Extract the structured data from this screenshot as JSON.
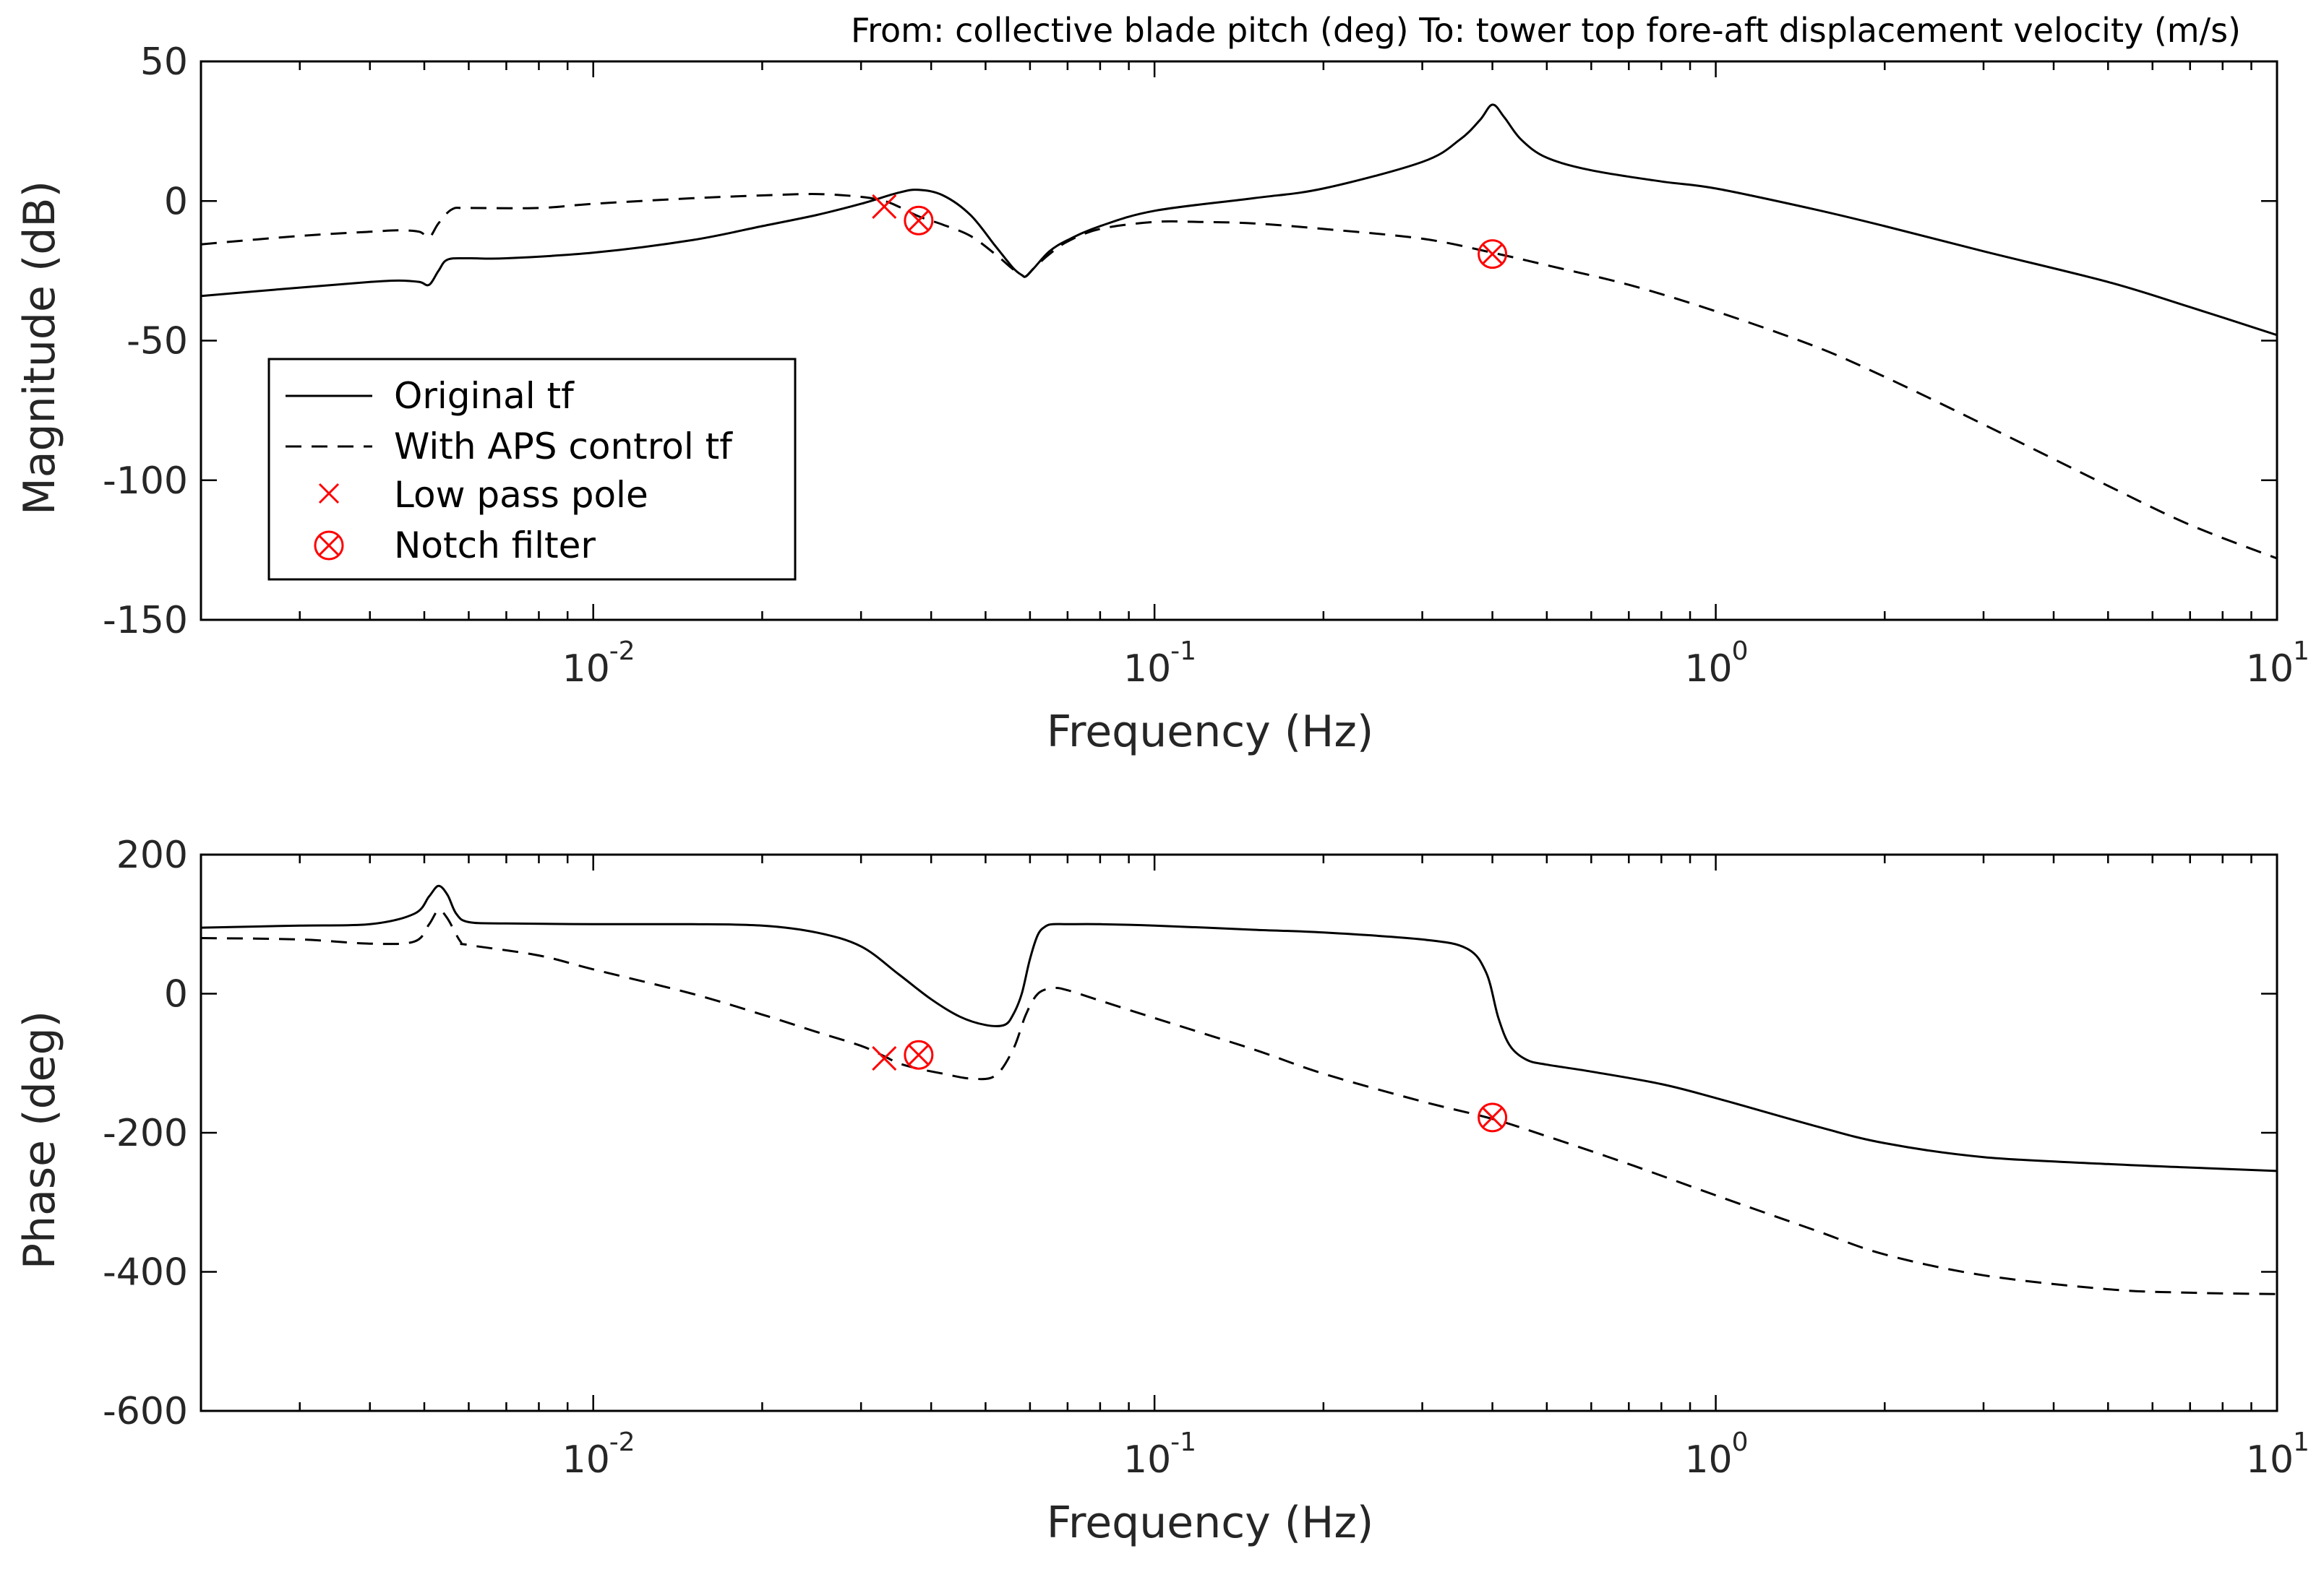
{
  "title": "From: collective blade pitch (deg)  To: tower top fore-aft displacement velocity (m/s)",
  "colors": {
    "curve": "#000000",
    "marker": "#ff0000",
    "text": "#262626"
  },
  "legend": {
    "items": [
      {
        "label": "Original tf",
        "style": "solid"
      },
      {
        "label": "With APS control tf",
        "style": "dashed"
      },
      {
        "label": "Low pass pole",
        "style": "x-marker"
      },
      {
        "label": "Notch filter",
        "style": "circle-x-marker"
      }
    ]
  },
  "chart_data": [
    {
      "type": "line",
      "id": "magnitude",
      "xscale": "log",
      "xlim": [
        0.002,
        10
      ],
      "ylim": [
        -150,
        50
      ],
      "xlabel": "Frequency (Hz)",
      "ylabel": "Magnitude (dB)",
      "yticks": [
        50,
        0,
        -50,
        -100,
        -150
      ],
      "ytick_labels": [
        "50",
        "0",
        "-50",
        "-100",
        "-150"
      ],
      "xticks": [
        {
          "value": 0.01,
          "base": "10",
          "exp": "-2"
        },
        {
          "value": 0.1,
          "base": "10",
          "exp": "-1"
        },
        {
          "value": 1,
          "base": "10",
          "exp": "0"
        },
        {
          "value": 10,
          "base": "10",
          "exp": "1"
        }
      ],
      "series": [
        {
          "name": "Original tf",
          "style": "solid",
          "x": [
            0.002,
            0.003,
            0.004,
            0.0045,
            0.0049,
            0.0051,
            0.0053,
            0.0055,
            0.006,
            0.007,
            0.01,
            0.015,
            0.02,
            0.025,
            0.03,
            0.035,
            0.038,
            0.042,
            0.047,
            0.052,
            0.056,
            0.058,
            0.059,
            0.061,
            0.065,
            0.07,
            0.08,
            0.1,
            0.15,
            0.2,
            0.3,
            0.35,
            0.38,
            0.4,
            0.42,
            0.45,
            0.5,
            0.6,
            0.8,
            1.0,
            1.5,
            2.0,
            3.0,
            5.0,
            7.0,
            10.0
          ],
          "y": [
            -34,
            -31,
            -29,
            -28.5,
            -29,
            -30,
            -25,
            -21,
            -20.5,
            -20.5,
            -18.5,
            -14,
            -9,
            -5,
            -1,
            3,
            4,
            2,
            -5,
            -16,
            -24,
            -26.5,
            -27,
            -24,
            -18,
            -14,
            -9,
            -3.5,
            1,
            4.5,
            14,
            22,
            29,
            34.5,
            30,
            22,
            15.5,
            11,
            7,
            4.5,
            -3,
            -9,
            -18,
            -29,
            -38,
            -48
          ]
        },
        {
          "name": "With APS control tf",
          "style": "dashed",
          "x": [
            0.002,
            0.003,
            0.004,
            0.0045,
            0.0049,
            0.0051,
            0.0053,
            0.0056,
            0.006,
            0.008,
            0.01,
            0.015,
            0.02,
            0.025,
            0.03,
            0.033,
            0.035,
            0.038,
            0.042,
            0.047,
            0.052,
            0.056,
            0.058,
            0.059,
            0.061,
            0.065,
            0.07,
            0.08,
            0.1,
            0.12,
            0.15,
            0.2,
            0.3,
            0.4,
            0.5,
            0.7,
            1.0,
            1.5,
            2.0,
            3.0,
            5.0,
            7.0,
            10.0
          ],
          "y": [
            -15.5,
            -12.5,
            -11,
            -10.5,
            -11,
            -13,
            -8,
            -3,
            -2.5,
            -2.5,
            -1,
            1,
            2,
            2.5,
            1.5,
            0,
            -2,
            -5.5,
            -8.5,
            -12.5,
            -19,
            -24.5,
            -26.5,
            -27,
            -24,
            -19,
            -14.5,
            -10,
            -7.5,
            -7.5,
            -8,
            -10,
            -13.5,
            -18.5,
            -23,
            -30,
            -39.5,
            -52,
            -63,
            -80,
            -102,
            -116,
            -128
          ]
        }
      ],
      "markers": [
        {
          "type": "low-pass-pole",
          "label": "Low pass pole",
          "x": 0.033,
          "y": -2
        },
        {
          "type": "notch-filter",
          "label": "Notch filter",
          "x": 0.038,
          "y": -7
        },
        {
          "type": "notch-filter",
          "label": "Notch filter",
          "x": 0.4,
          "y": -19
        }
      ]
    },
    {
      "type": "line",
      "id": "phase",
      "xscale": "log",
      "xlim": [
        0.002,
        10
      ],
      "ylim": [
        -600,
        200
      ],
      "xlabel": "Frequency (Hz)",
      "ylabel": "Phase (deg)",
      "yticks": [
        200,
        0,
        -200,
        -400,
        -600
      ],
      "ytick_labels": [
        "200",
        "0",
        "-200",
        "-400",
        "-600"
      ],
      "xticks": [
        {
          "value": 0.01,
          "base": "10",
          "exp": "-2"
        },
        {
          "value": 0.1,
          "base": "10",
          "exp": "-1"
        },
        {
          "value": 1,
          "base": "10",
          "exp": "0"
        },
        {
          "value": 10,
          "base": "10",
          "exp": "1"
        }
      ],
      "series": [
        {
          "name": "Original tf",
          "style": "solid",
          "x": [
            0.002,
            0.003,
            0.004,
            0.0048,
            0.0051,
            0.0053,
            0.0055,
            0.0057,
            0.006,
            0.007,
            0.01,
            0.015,
            0.02,
            0.025,
            0.03,
            0.035,
            0.04,
            0.045,
            0.05,
            0.054,
            0.056,
            0.058,
            0.06,
            0.062,
            0.064,
            0.066,
            0.07,
            0.08,
            0.1,
            0.15,
            0.2,
            0.3,
            0.36,
            0.39,
            0.41,
            0.43,
            0.46,
            0.5,
            0.6,
            0.8,
            1.0,
            1.5,
            2.0,
            3.0,
            5.0,
            7.0,
            10.0
          ],
          "y": [
            95,
            98,
            100,
            115,
            140,
            155,
            142,
            115,
            103,
            101,
            100,
            100,
            98,
            88,
            68,
            28,
            -8,
            -33,
            -45,
            -45,
            -30,
            0,
            50,
            85,
            97,
            100,
            100,
            100,
            98,
            92,
            88,
            78,
            65,
            30,
            -35,
            -75,
            -95,
            -102,
            -112,
            -130,
            -150,
            -190,
            -215,
            -235,
            -245,
            -250,
            -255
          ]
        },
        {
          "name": "With APS control tf",
          "style": "dashed",
          "x": [
            0.002,
            0.003,
            0.004,
            0.0048,
            0.0051,
            0.0053,
            0.0055,
            0.0058,
            0.006,
            0.008,
            0.01,
            0.015,
            0.02,
            0.025,
            0.03,
            0.033,
            0.035,
            0.038,
            0.042,
            0.047,
            0.052,
            0.056,
            0.059,
            0.062,
            0.066,
            0.07,
            0.08,
            0.1,
            0.15,
            0.2,
            0.3,
            0.4,
            0.5,
            0.7,
            1.0,
            1.5,
            2.0,
            3.0,
            5.0,
            7.0,
            10.0
          ],
          "y": [
            80,
            78,
            72,
            75,
            100,
            120,
            108,
            75,
            70,
            55,
            35,
            0,
            -30,
            -55,
            -75,
            -90,
            -100,
            -108,
            -115,
            -122,
            -118,
            -80,
            -30,
            0,
            8,
            5,
            -10,
            -35,
            -80,
            -115,
            -155,
            -180,
            -205,
            -245,
            -290,
            -340,
            -375,
            -405,
            -425,
            -430,
            -432
          ]
        }
      ],
      "markers": [
        {
          "type": "low-pass-pole",
          "label": "Low pass pole",
          "x": 0.033,
          "y": -93
        },
        {
          "type": "notch-filter",
          "label": "Notch filter",
          "x": 0.038,
          "y": -88
        },
        {
          "type": "notch-filter",
          "label": "Notch filter",
          "x": 0.4,
          "y": -178
        }
      ]
    }
  ]
}
